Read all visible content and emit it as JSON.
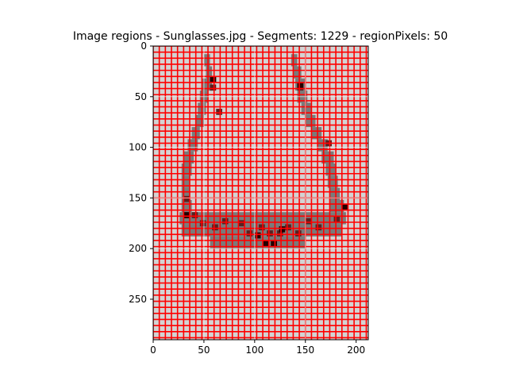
{
  "chart_data": {
    "type": "heatmap",
    "title": "Image regions - Sunglasses.jpg - Segments: 1229 - regionPixels: 50",
    "xlabel": "",
    "ylabel": "",
    "xlim": [
      0,
      212
    ],
    "ylim": [
      290,
      0
    ],
    "x_ticks": [
      0,
      50,
      100,
      150,
      200
    ],
    "y_ticks": [
      0,
      50,
      100,
      150,
      200,
      250
    ],
    "x_tick_labels": [
      "0",
      "50",
      "100",
      "150",
      "200"
    ],
    "y_tick_labels": [
      "0",
      "50",
      "100",
      "150",
      "200",
      "250"
    ],
    "grid": false,
    "image": {
      "width": 212,
      "height": 290,
      "cell_size": 6,
      "background_color": "#d3d3d3",
      "shape_color": "#7a7a7a",
      "dark_color": "#5a2020",
      "darkest_color": "#220000",
      "boundary_color": "#ff0000"
    },
    "shape_rows": [
      {
        "y": 8,
        "x_ranges": [
          [
            50,
            56
          ],
          [
            136,
            142
          ]
        ]
      },
      {
        "y": 20,
        "x_ranges": [
          [
            52,
            58
          ],
          [
            138,
            146
          ]
        ]
      },
      {
        "y": 32,
        "x_ranges": [
          [
            48,
            58
          ],
          [
            140,
            150
          ]
        ]
      },
      {
        "y": 44,
        "x_ranges": [
          [
            46,
            54
          ],
          [
            142,
            152
          ]
        ]
      },
      {
        "y": 56,
        "x_ranges": [
          [
            44,
            52
          ],
          [
            146,
            156
          ]
        ]
      },
      {
        "y": 68,
        "x_ranges": [
          [
            42,
            50
          ],
          [
            150,
            160
          ]
        ]
      },
      {
        "y": 80,
        "x_ranges": [
          [
            38,
            46
          ],
          [
            156,
            166
          ]
        ]
      },
      {
        "y": 92,
        "x_ranges": [
          [
            34,
            44
          ],
          [
            162,
            172
          ]
        ]
      },
      {
        "y": 104,
        "x_ranges": [
          [
            30,
            40
          ],
          [
            166,
            178
          ]
        ]
      },
      {
        "y": 116,
        "x_ranges": [
          [
            28,
            38
          ],
          [
            170,
            180
          ]
        ]
      },
      {
        "y": 128,
        "x_ranges": [
          [
            28,
            36
          ],
          [
            172,
            182
          ]
        ]
      },
      {
        "y": 140,
        "x_ranges": [
          [
            28,
            36
          ],
          [
            174,
            184
          ]
        ]
      },
      {
        "y": 152,
        "x_ranges": [
          [
            28,
            38
          ],
          [
            174,
            188
          ]
        ]
      },
      {
        "y": 164,
        "x_ranges": [
          [
            26,
            190
          ]
        ]
      },
      {
        "y": 176,
        "x_ranges": [
          [
            28,
            186
          ]
        ]
      },
      {
        "y": 188,
        "x_ranges": [
          [
            56,
            150
          ]
        ]
      }
    ],
    "dark_points": [
      [
        56,
        30
      ],
      [
        56,
        38
      ],
      [
        142,
        38
      ],
      [
        62,
        62
      ],
      [
        170,
        93
      ],
      [
        30,
        148
      ],
      [
        30,
        164
      ],
      [
        38,
        164
      ],
      [
        186,
        156
      ],
      [
        178,
        168
      ],
      [
        68,
        170
      ],
      [
        84,
        172
      ],
      [
        104,
        176
      ],
      [
        130,
        176
      ],
      [
        150,
        170
      ],
      [
        92,
        182
      ],
      [
        112,
        182
      ],
      [
        122,
        182
      ],
      [
        140,
        182
      ],
      [
        108,
        192
      ],
      [
        116,
        192
      ],
      [
        46,
        172
      ],
      [
        58,
        176
      ],
      [
        160,
        176
      ]
    ],
    "darkest_points": [
      [
        56,
        30
      ],
      [
        142,
        36
      ],
      [
        30,
        164
      ],
      [
        108,
        192
      ],
      [
        116,
        192
      ],
      [
        186,
        156
      ],
      [
        100,
        184
      ],
      [
        124,
        178
      ]
    ]
  }
}
